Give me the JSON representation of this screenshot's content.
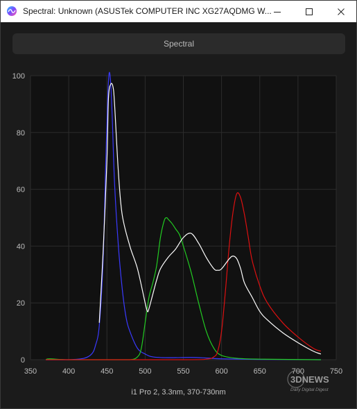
{
  "window": {
    "title": "Spectral: Unknown (ASUSTek COMPUTER INC XG27AQDMG W...",
    "icon": "spectral-app-icon"
  },
  "toolbar": {
    "spectral_label": "Spectral"
  },
  "caption": "i1 Pro 2, 3.3nm, 370-730nm",
  "watermark": {
    "brand": "3DNEWS",
    "tagline": "Daily Digital Digest"
  },
  "colors": {
    "background": "#111111",
    "grid": "#2c2c2c",
    "blue": "#3a3aff",
    "green": "#22cc22",
    "red": "#dd1111",
    "white": "#ffffff",
    "tick_text": "#bdbdbd"
  },
  "chart_data": {
    "type": "line",
    "title": "",
    "xlabel": "",
    "ylabel": "",
    "xlim": [
      350,
      750
    ],
    "ylim": [
      0,
      100
    ],
    "xticks": [
      350,
      400,
      450,
      500,
      550,
      600,
      650,
      700,
      750
    ],
    "yticks": [
      0,
      20,
      40,
      60,
      80,
      100
    ],
    "grid": true,
    "series": [
      {
        "color": "blue",
        "x": [
          370,
          400,
          420,
          430,
          435,
          440,
          445,
          448,
          451,
          453,
          455,
          457,
          460,
          465,
          470,
          475,
          480,
          490,
          500,
          510,
          530,
          560,
          580,
          600,
          650,
          730
        ],
        "y": [
          0,
          0,
          0.5,
          2,
          5,
          12,
          35,
          65,
          92,
          101,
          97,
          85,
          62,
          40,
          25,
          15,
          10,
          4,
          2,
          1,
          0.7,
          0.8,
          0.6,
          0.3,
          0.1,
          0
        ]
      },
      {
        "color": "green",
        "x": [
          370,
          375,
          400,
          450,
          480,
          490,
          495,
          500,
          505,
          510,
          515,
          520,
          525,
          528,
          530,
          535,
          540,
          545,
          550,
          560,
          570,
          580,
          590,
          600,
          620,
          650,
          730
        ],
        "y": [
          0,
          0.3,
          0,
          0,
          0,
          1,
          4,
          13,
          22,
          27,
          33,
          43,
          49,
          50,
          49.5,
          48,
          46,
          44,
          40,
          31,
          20,
          10,
          4,
          1.5,
          0.5,
          0.2,
          0
        ]
      },
      {
        "color": "red",
        "x": [
          370,
          550,
          580,
          590,
          595,
          600,
          605,
          610,
          615,
          620,
          625,
          630,
          635,
          640,
          650,
          660,
          680,
          700,
          720,
          730
        ],
        "y": [
          0,
          0,
          0.2,
          1,
          3,
          10,
          24,
          40,
          52,
          58.5,
          57,
          51,
          43,
          35,
          26,
          20,
          13,
          8,
          4,
          3
        ]
      },
      {
        "color": "white",
        "x": [
          440,
          445,
          450,
          452,
          455,
          458,
          460,
          465,
          470,
          480,
          490,
          500,
          503,
          505,
          510,
          515,
          520,
          530,
          540,
          550,
          560,
          570,
          580,
          590,
          595,
          600,
          610,
          615,
          620,
          625,
          630,
          640,
          650,
          660,
          680,
          700,
          720,
          730
        ],
        "y": [
          13,
          38,
          70,
          92,
          97,
          96,
          90,
          66,
          51,
          40,
          32,
          20,
          17,
          18,
          23,
          28,
          32,
          36,
          39,
          43,
          44.5,
          41,
          36,
          32,
          31.5,
          32,
          35.5,
          36.5,
          35.5,
          32,
          27,
          22,
          17,
          14,
          9.5,
          6,
          3,
          2
        ]
      }
    ]
  }
}
